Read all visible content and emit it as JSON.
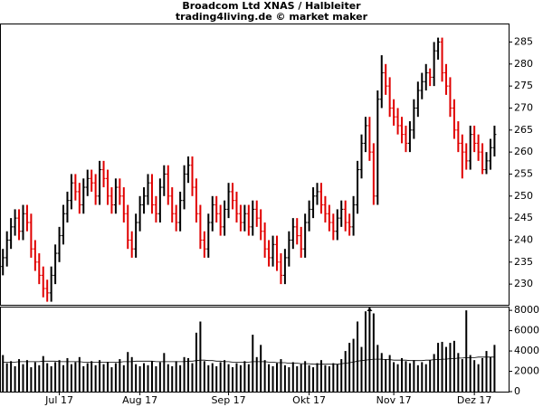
{
  "chart_data": {
    "type": "ohlc",
    "title": "Broadcom Ltd XNAS / Halbleiter",
    "subtitle": "trading4living.de © market maker",
    "up_color": "#000000",
    "down_color": "#e00000",
    "ylim": [
      225.3,
      289
    ],
    "yticks": [
      230,
      235,
      240,
      245,
      250,
      255,
      260,
      265,
      270,
      275,
      280,
      285
    ],
    "xlim": [
      -0.5,
      125.5
    ],
    "xticks": [
      {
        "value": 14,
        "label": "Jul 17"
      },
      {
        "value": 34,
        "label": "Aug 17"
      },
      {
        "value": 56,
        "label": "Sep 17"
      },
      {
        "value": 76,
        "label": "Okt 17"
      },
      {
        "value": 97,
        "label": "Nov 17"
      },
      {
        "value": 117,
        "label": "Dez 17"
      }
    ],
    "open": [
      234,
      236,
      240,
      243,
      245,
      242,
      246,
      244,
      238,
      235,
      232,
      229,
      228,
      232,
      237,
      241,
      246,
      249,
      253,
      251,
      248,
      252,
      254,
      253,
      250,
      256,
      254,
      250,
      248,
      252,
      250,
      246,
      240,
      238,
      244,
      248,
      250,
      253,
      248,
      246,
      252,
      255,
      250,
      246,
      244,
      249,
      255,
      257,
      252,
      246,
      240,
      238,
      244,
      248,
      246,
      243,
      247,
      251,
      249,
      246,
      244,
      246,
      243,
      247,
      245,
      242,
      238,
      236,
      239,
      235,
      232,
      236,
      240,
      243,
      241,
      238,
      244,
      247,
      250,
      251,
      248,
      246,
      244,
      242,
      245,
      247,
      244,
      243,
      248,
      256,
      262,
      266,
      260,
      250,
      272,
      278,
      275,
      270,
      268,
      266,
      264,
      262,
      265,
      270,
      274,
      276,
      278,
      277,
      283,
      285,
      278,
      275,
      270,
      265,
      262,
      260,
      258,
      264,
      262,
      260,
      256,
      258,
      261
    ],
    "high": [
      238,
      242,
      245,
      247,
      247,
      248,
      248,
      246,
      240,
      237,
      234,
      231,
      234,
      239,
      243,
      248,
      251,
      255,
      255,
      253,
      254,
      256,
      256,
      255,
      258,
      258,
      256,
      252,
      254,
      254,
      252,
      248,
      242,
      246,
      250,
      252,
      255,
      255,
      250,
      254,
      257,
      257,
      252,
      248,
      251,
      257,
      259,
      259,
      254,
      248,
      242,
      246,
      250,
      250,
      248,
      249,
      253,
      253,
      251,
      248,
      248,
      248,
      249,
      249,
      247,
      244,
      240,
      241,
      241,
      237,
      238,
      242,
      245,
      245,
      243,
      246,
      249,
      252,
      253,
      253,
      250,
      248,
      246,
      247,
      249,
      249,
      246,
      250,
      258,
      264,
      268,
      268,
      262,
      274,
      282,
      280,
      277,
      272,
      270,
      268,
      266,
      267,
      272,
      276,
      278,
      280,
      279,
      285,
      286,
      286,
      280,
      277,
      272,
      267,
      264,
      262,
      266,
      266,
      264,
      262,
      260,
      263,
      266
    ],
    "low": [
      232,
      234,
      238,
      241,
      240,
      240,
      242,
      236,
      233,
      230,
      227,
      226,
      226,
      230,
      235,
      239,
      244,
      247,
      249,
      246,
      246,
      250,
      251,
      248,
      248,
      252,
      248,
      246,
      246,
      248,
      244,
      238,
      236,
      236,
      242,
      246,
      248,
      246,
      244,
      244,
      250,
      248,
      244,
      242,
      242,
      247,
      253,
      250,
      244,
      238,
      236,
      236,
      242,
      244,
      241,
      241,
      245,
      247,
      244,
      242,
      242,
      241,
      241,
      243,
      240,
      236,
      234,
      234,
      233,
      230,
      230,
      234,
      238,
      239,
      236,
      236,
      242,
      245,
      248,
      246,
      244,
      242,
      240,
      240,
      243,
      242,
      241,
      241,
      246,
      254,
      260,
      258,
      248,
      248,
      270,
      273,
      268,
      266,
      264,
      262,
      260,
      260,
      263,
      268,
      272,
      274,
      275,
      275,
      281,
      276,
      273,
      268,
      263,
      260,
      254,
      256,
      256,
      260,
      258,
      255,
      255,
      256,
      259
    ],
    "close": [
      236,
      240,
      243,
      245,
      242,
      246,
      244,
      238,
      235,
      232,
      229,
      228,
      232,
      237,
      241,
      246,
      249,
      253,
      251,
      248,
      252,
      254,
      253,
      250,
      256,
      254,
      250,
      248,
      252,
      250,
      246,
      240,
      238,
      244,
      248,
      250,
      253,
      248,
      246,
      252,
      255,
      250,
      246,
      244,
      249,
      255,
      257,
      252,
      246,
      240,
      238,
      244,
      248,
      246,
      243,
      247,
      251,
      249,
      246,
      244,
      246,
      243,
      247,
      245,
      242,
      238,
      236,
      239,
      235,
      232,
      236,
      240,
      243,
      241,
      238,
      244,
      247,
      250,
      251,
      248,
      246,
      244,
      242,
      245,
      247,
      244,
      243,
      248,
      256,
      262,
      266,
      260,
      250,
      272,
      278,
      275,
      270,
      268,
      266,
      264,
      262,
      265,
      270,
      274,
      276,
      278,
      277,
      283,
      285,
      278,
      275,
      270,
      265,
      262,
      260,
      258,
      264,
      262,
      260,
      256,
      258,
      261,
      264
    ],
    "volume": {
      "ylim": [
        0,
        8280
      ],
      "yticks": [
        0,
        2000,
        4000,
        6000,
        8000
      ],
      "values": [
        3600,
        2800,
        3000,
        2500,
        3200,
        2700,
        3100,
        2400,
        2900,
        2600,
        3500,
        2800,
        2500,
        2900,
        3100,
        2600,
        3300,
        2700,
        2900,
        3400,
        2500,
        2800,
        3000,
        2600,
        3100,
        2700,
        2900,
        2400,
        2800,
        3200,
        2600,
        3900,
        3400,
        2700,
        2500,
        2800,
        2600,
        3000,
        2500,
        2900,
        3800,
        2700,
        2500,
        3000,
        2600,
        3400,
        3300,
        2800,
        5800,
        6900,
        3000,
        2600,
        2800,
        2500,
        2900,
        3100,
        2700,
        2400,
        2800,
        2600,
        3000,
        2700,
        5600,
        3400,
        4600,
        3100,
        2700,
        2500,
        2800,
        3200,
        2600,
        2400,
        2900,
        2500,
        2700,
        3000,
        2600,
        2400,
        2800,
        3100,
        2600,
        2500,
        2800,
        2700,
        3200,
        4000,
        4800,
        5200,
        6900,
        4400,
        7900,
        8600,
        7700,
        4600,
        3800,
        3200,
        3600,
        2900,
        2700,
        3300,
        3000,
        2800,
        3100,
        2600,
        2900,
        2700,
        3100,
        3700,
        4800,
        4900,
        4400,
        4800,
        5000,
        3800,
        3200,
        8000,
        3600,
        3100,
        2700,
        3300,
        4000,
        3400,
        4600
      ],
      "average": [
        2900,
        2900,
        2900,
        2900,
        2950,
        2950,
        2950,
        2950,
        2950,
        2950,
        3000,
        3000,
        3000,
        3000,
        2950,
        2950,
        2950,
        2950,
        2950,
        2950,
        2900,
        2900,
        2900,
        2900,
        2900,
        2900,
        2900,
        2900,
        2900,
        2900,
        2950,
        2950,
        2950,
        3000,
        3000,
        3000,
        3000,
        3000,
        2950,
        2950,
        2950,
        2950,
        2950,
        2950,
        2950,
        2950,
        3000,
        3000,
        3050,
        3100,
        3100,
        3050,
        3050,
        3000,
        3000,
        2950,
        2950,
        2900,
        2900,
        2900,
        2900,
        2900,
        2950,
        2950,
        2950,
        2950,
        2900,
        2900,
        2850,
        2850,
        2850,
        2800,
        2800,
        2800,
        2750,
        2750,
        2750,
        2700,
        2700,
        2700,
        2700,
        2700,
        2700,
        2700,
        2750,
        2800,
        2850,
        2900,
        3000,
        3050,
        3100,
        3150,
        3200,
        3200,
        3200,
        3150,
        3150,
        3100,
        3100,
        3100,
        3100,
        3050,
        3050,
        3050,
        3050,
        3100,
        3100,
        3150,
        3150,
        3200,
        3200,
        3250,
        3250,
        3300,
        3300,
        3350,
        3350,
        3350,
        3400,
        3400,
        3400,
        3400,
        3400
      ]
    }
  }
}
